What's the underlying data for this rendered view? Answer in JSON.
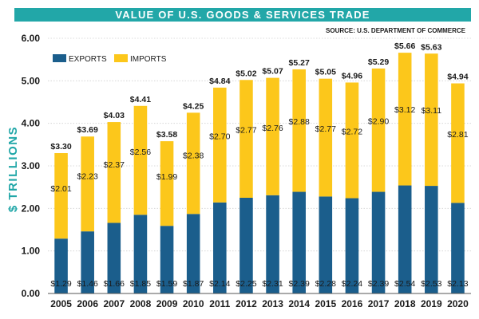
{
  "chart_data": {
    "type": "bar",
    "stacked": true,
    "title": "VALUE OF U.S. GOODS & SERVICES TRADE",
    "source": "SOURCE: U.S. DEPARTMENT OF COMMERCE",
    "ylabel": "$ TRILLIONS",
    "xlabel": "",
    "ylim": [
      0,
      6
    ],
    "yticks": [
      "0.00",
      "1.00",
      "2.00",
      "3.00",
      "4.00",
      "5.00",
      "6.00"
    ],
    "grid": true,
    "legend_placement": "top-left",
    "categories": [
      "2005",
      "2006",
      "2007",
      "2008",
      "2009",
      "2010",
      "2011",
      "2012",
      "2013",
      "2014",
      "2015",
      "2016",
      "2017",
      "2018",
      "2019",
      "2020"
    ],
    "series": [
      {
        "name": "EXPORTS",
        "color": "#1b5e8c",
        "values": [
          1.29,
          1.46,
          1.66,
          1.85,
          1.59,
          1.87,
          2.14,
          2.25,
          2.31,
          2.39,
          2.28,
          2.24,
          2.39,
          2.54,
          2.53,
          2.13
        ],
        "labels": [
          "$1.29",
          "$1.46",
          "$1.66",
          "$1.85",
          "$1.59",
          "$1.87",
          "$2.14",
          "$2.25",
          "$2.31",
          "$2.39",
          "$2.28",
          "$2.24",
          "$2.39",
          "$2.54",
          "$2.53",
          "$2.13"
        ]
      },
      {
        "name": "IMPORTS",
        "color": "#fcc71b",
        "values": [
          2.01,
          2.23,
          2.37,
          2.56,
          1.99,
          2.38,
          2.7,
          2.77,
          2.76,
          2.88,
          2.77,
          2.72,
          2.9,
          3.12,
          3.11,
          2.81
        ],
        "labels": [
          "$2.01",
          "$2.23",
          "$2.37",
          "$2.56",
          "$1.99",
          "$2.38",
          "$2.70",
          "$2.77",
          "$2.76",
          "$2.88",
          "$2.77",
          "$2.72",
          "$2.90",
          "$3.12",
          "$3.11",
          "$2.81"
        ]
      }
    ],
    "totals": [
      3.3,
      3.69,
      4.03,
      4.41,
      3.58,
      4.25,
      4.84,
      5.02,
      5.07,
      5.27,
      5.05,
      4.96,
      5.29,
      5.66,
      5.63,
      4.94
    ],
    "total_labels": [
      "$3.30",
      "$3.69",
      "$4.03",
      "$4.41",
      "$3.58",
      "$4.25",
      "$4.84",
      "$5.02",
      "$5.07",
      "$5.27",
      "$5.05",
      "$4.96",
      "$5.29",
      "$5.66",
      "$5.63",
      "$4.94"
    ]
  }
}
